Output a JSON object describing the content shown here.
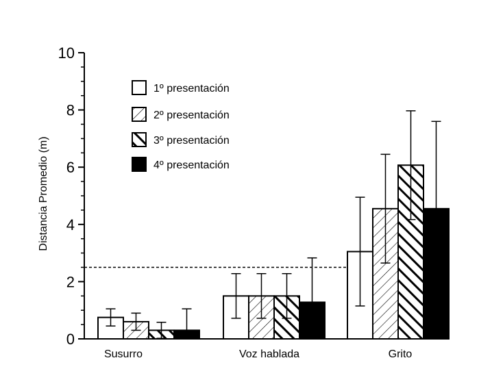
{
  "chart_data": {
    "type": "bar",
    "categories": [
      "Susurro",
      "Voz hablada",
      "Grito"
    ],
    "ylabel": "Distancia Promedio (m)",
    "xlabel": "",
    "ylim": [
      0,
      10
    ],
    "yticks": [
      "0",
      "2",
      "4",
      "6",
      "8",
      "10"
    ],
    "reference_line": {
      "y": 2.5,
      "style": "dashed"
    },
    "grid": false,
    "legend_position": "top-left",
    "series": [
      {
        "name": "1º presentación",
        "pattern": "empty",
        "values": [
          0.75,
          1.5,
          3.05
        ],
        "errors": [
          0.3,
          0.78,
          1.9
        ]
      },
      {
        "name": "2º presentación",
        "pattern": "diagonal-light",
        "values": [
          0.6,
          1.5,
          4.55
        ],
        "errors": [
          0.3,
          0.78,
          1.9
        ]
      },
      {
        "name": "3º presentación",
        "pattern": "diagonal-heavy",
        "values": [
          0.3,
          1.5,
          6.07
        ],
        "errors": [
          0.28,
          0.78,
          1.9
        ]
      },
      {
        "name": "4º presentación",
        "pattern": "solid",
        "values": [
          0.3,
          1.28,
          4.55
        ],
        "errors": [
          0.75,
          1.55,
          3.05
        ]
      }
    ],
    "colors": {
      "ink": "#000000",
      "paper": "#ffffff"
    }
  }
}
